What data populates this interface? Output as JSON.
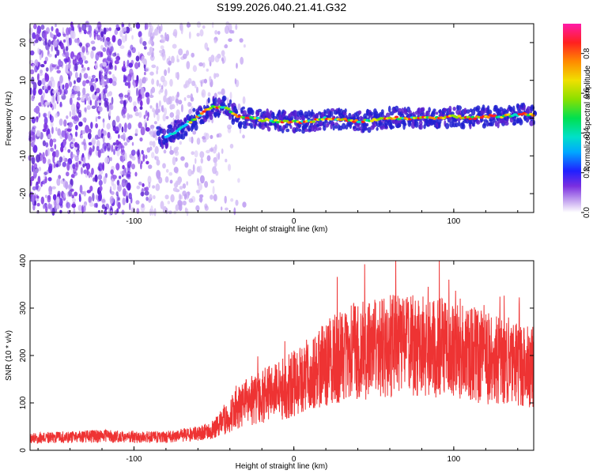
{
  "chart_data": [
    {
      "type": "heatmap",
      "title": "S199.2026.040.21.41.G32",
      "xlabel": "Height of straight line (km)",
      "ylabel": "Frequency (Hz)",
      "xlim": [
        -165,
        150
      ],
      "ylim": [
        -25,
        25
      ],
      "xticks": [
        -100,
        0,
        100
      ],
      "xtick_labels": [
        "-100",
        "0",
        "100"
      ],
      "yticks": [
        -20,
        -10,
        0,
        10,
        20
      ],
      "ytick_labels": [
        "-20",
        "-10",
        "0",
        "10",
        "20"
      ],
      "colorbar": {
        "label": "Normalized spectral amplitude",
        "range": [
          0,
          0.95
        ],
        "ticks": [
          0,
          0.2,
          0.4,
          0.6,
          0.8
        ],
        "tick_labels": [
          "0.0",
          "0.2",
          "0.4",
          "0.6",
          "0.8"
        ]
      },
      "trace": {
        "x": [
          -80,
          -75,
          -70,
          -65,
          -60,
          -55,
          -50,
          -45,
          -40,
          -35,
          -30,
          -25,
          -20,
          -15,
          -10,
          -5,
          0,
          5,
          10,
          15,
          20,
          25,
          30,
          35,
          40,
          50,
          60,
          70,
          80,
          90,
          100,
          110,
          120,
          130,
          140,
          150
        ],
        "y": [
          -5,
          -4,
          -2.5,
          -1,
          0.5,
          2,
          3,
          3,
          2,
          0.5,
          0,
          0,
          -0.5,
          -0.5,
          -1,
          -1,
          -1,
          -1,
          -1,
          -0.5,
          0,
          0,
          -0.5,
          -0.5,
          -1,
          -0.5,
          0,
          0,
          0,
          0,
          0.5,
          0,
          0.5,
          0.5,
          1,
          1
        ]
      }
    },
    {
      "type": "line",
      "xlabel": "Height of straight line (km)",
      "ylabel": "SNR (10 * v/v)",
      "xlim": [
        -165,
        150
      ],
      "ylim": [
        0,
        400
      ],
      "xticks": [
        -100,
        0,
        100
      ],
      "xtick_labels": [
        "-100",
        "0",
        "100"
      ],
      "yticks": [
        0,
        100,
        200,
        300,
        400
      ],
      "ytick_labels": [
        "0",
        "100",
        "200",
        "300",
        "400"
      ],
      "color": "#ee3333",
      "trend": {
        "x": [
          -165,
          -140,
          -120,
          -100,
          -80,
          -60,
          -50,
          -40,
          -30,
          -20,
          -10,
          0,
          10,
          20,
          30,
          40,
          50,
          60,
          70,
          80,
          90,
          100,
          110,
          120,
          130,
          140,
          150
        ],
        "y": [
          25,
          28,
          30,
          28,
          28,
          35,
          45,
          75,
          100,
          115,
          125,
          140,
          160,
          185,
          200,
          210,
          215,
          220,
          222,
          218,
          215,
          210,
          205,
          195,
          185,
          178,
          180
        ]
      },
      "peaks": [
        {
          "x": 68,
          "y": 320
        },
        {
          "x": 84,
          "y": 345
        },
        {
          "x": 91,
          "y": 400
        },
        {
          "x": 97,
          "y": 360
        },
        {
          "x": 104,
          "y": 320
        }
      ]
    }
  ]
}
